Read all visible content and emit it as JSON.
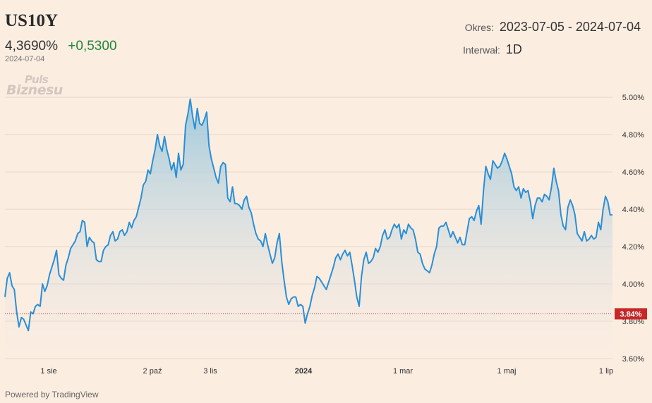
{
  "header": {
    "ticker": "US10Y",
    "price": "4,3690%",
    "change": "+0,5300",
    "date": "2024-07-04",
    "logo_line1": "Puls",
    "logo_line2": "Biznesu"
  },
  "meta": {
    "period_label": "Okres:",
    "period_value": "2023-07-05 - 2024-07-04",
    "interval_label": "Interwał:",
    "interval_value": "1D"
  },
  "footer": {
    "powered": "Powered by TradingView"
  },
  "colors": {
    "line": "#2a8fd6",
    "marker": "#c62828",
    "background": "#fcede1",
    "change_positive": "#22863a"
  },
  "chart_data": {
    "type": "area",
    "x_tick_labels": [
      "1 sie",
      "2 paź",
      "3 lis",
      "2024",
      "1 mar",
      "1 maj",
      "1 lip"
    ],
    "y_tick_labels": [
      "5.00%",
      "4.80%",
      "4.60%",
      "4.40%",
      "4.20%",
      "4.00%",
      "3.80%",
      "3.60%"
    ],
    "ylim": [
      3.6,
      5.0
    ],
    "reference_line": {
      "value": 3.84,
      "label": "3.84%"
    },
    "grid": true,
    "series": [
      {
        "values": [
          3.93,
          4.03,
          4.06,
          3.99,
          3.97,
          3.85,
          3.77,
          3.82,
          3.81,
          3.78,
          3.75,
          3.85,
          3.84,
          3.88,
          3.89,
          3.88,
          4.0,
          3.96,
          3.99,
          4.05,
          4.09,
          4.13,
          4.18,
          4.05,
          4.03,
          4.02,
          4.1,
          4.14,
          4.19,
          4.21,
          4.23,
          4.27,
          4.28,
          4.34,
          4.33,
          4.2,
          4.25,
          4.23,
          4.22,
          4.13,
          4.12,
          4.12,
          4.18,
          4.2,
          4.21,
          4.26,
          4.28,
          4.23,
          4.24,
          4.28,
          4.29,
          4.26,
          4.28,
          4.33,
          4.3,
          4.34,
          4.36,
          4.41,
          4.46,
          4.53,
          4.55,
          4.61,
          4.59,
          4.66,
          4.72,
          4.8,
          4.74,
          4.71,
          4.79,
          4.72,
          4.67,
          4.61,
          4.65,
          4.57,
          4.7,
          4.61,
          4.64,
          4.85,
          4.91,
          4.99,
          4.9,
          4.83,
          4.94,
          4.86,
          4.85,
          4.88,
          4.92,
          4.74,
          4.67,
          4.62,
          4.57,
          4.54,
          4.63,
          4.65,
          4.64,
          4.46,
          4.44,
          4.52,
          4.43,
          4.43,
          4.42,
          4.4,
          4.45,
          4.47,
          4.41,
          4.38,
          4.32,
          4.27,
          4.24,
          4.23,
          4.2,
          4.27,
          4.21,
          4.16,
          4.11,
          4.14,
          4.22,
          4.27,
          4.12,
          4.02,
          3.93,
          3.89,
          3.92,
          3.93,
          3.93,
          3.88,
          3.89,
          3.88,
          3.79,
          3.84,
          3.88,
          3.94,
          3.98,
          4.04,
          4.03,
          4.01,
          3.99,
          3.97,
          4.01,
          4.05,
          4.09,
          4.14,
          4.16,
          4.13,
          4.16,
          4.18,
          4.15,
          4.17,
          4.1,
          4.02,
          3.93,
          3.88,
          4.04,
          4.13,
          4.17,
          4.11,
          4.12,
          4.14,
          4.19,
          4.17,
          4.2,
          4.26,
          4.29,
          4.24,
          4.25,
          4.29,
          4.32,
          4.3,
          4.32,
          4.24,
          4.29,
          4.27,
          4.32,
          4.3,
          4.29,
          4.24,
          4.17,
          4.16,
          4.11,
          4.08,
          4.07,
          4.06,
          4.1,
          4.16,
          4.2,
          4.3,
          4.31,
          4.31,
          4.33,
          4.29,
          4.25,
          4.28,
          4.25,
          4.22,
          4.25,
          4.21,
          4.21,
          4.28,
          4.35,
          4.36,
          4.34,
          4.39,
          4.42,
          4.32,
          4.5,
          4.63,
          4.59,
          4.56,
          4.66,
          4.64,
          4.62,
          4.63,
          4.66,
          4.7,
          4.67,
          4.63,
          4.59,
          4.52,
          4.5,
          4.52,
          4.46,
          4.51,
          4.49,
          4.5,
          4.44,
          4.35,
          4.42,
          4.46,
          4.46,
          4.44,
          4.48,
          4.47,
          4.45,
          4.52,
          4.62,
          4.55,
          4.5,
          4.37,
          4.31,
          4.29,
          4.41,
          4.45,
          4.42,
          4.37,
          4.27,
          4.25,
          4.23,
          4.28,
          4.23,
          4.24,
          4.26,
          4.24,
          4.25,
          4.33,
          4.29,
          4.4,
          4.47,
          4.44,
          4.37,
          4.37
        ]
      }
    ]
  }
}
